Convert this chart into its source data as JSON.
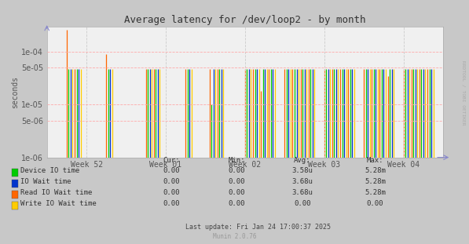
{
  "title": "Average latency for /dev/loop2 - by month",
  "ylabel": "seconds",
  "background_color": "#c8c8c8",
  "plot_bg_color": "#f0f0f0",
  "grid_color_h": "#ff9999",
  "grid_color_v": "#c8c8c8",
  "ylim_min": 1e-06,
  "ylim_max": 0.0003,
  "xlim_min": 0,
  "xlim_max": 10,
  "x_tick_positions": [
    1.0,
    3.0,
    5.0,
    7.0,
    9.0
  ],
  "x_labels": [
    "Week 52",
    "Week 01",
    "Week 02",
    "Week 03",
    "Week 04"
  ],
  "series": [
    {
      "name": "Device IO time",
      "color": "#00cc00",
      "segments": [
        [
          0.55,
          4.8e-05
        ],
        [
          0.75,
          4.8e-05
        ],
        [
          1.55,
          4.8e-05
        ],
        [
          2.55,
          4.8e-05
        ],
        [
          2.75,
          4.8e-05
        ],
        [
          3.55,
          4.8e-05
        ],
        [
          4.15,
          1e-05
        ],
        [
          4.35,
          4.8e-05
        ],
        [
          5.05,
          4.8e-05
        ],
        [
          5.25,
          4.8e-05
        ],
        [
          5.45,
          4.8e-05
        ],
        [
          5.65,
          4.8e-05
        ],
        [
          6.05,
          4.8e-05
        ],
        [
          6.25,
          4.8e-05
        ],
        [
          6.45,
          4.8e-05
        ],
        [
          6.65,
          4.8e-05
        ],
        [
          7.05,
          4.8e-05
        ],
        [
          7.25,
          4.8e-05
        ],
        [
          7.45,
          4.8e-05
        ],
        [
          7.65,
          4.8e-05
        ],
        [
          8.05,
          4.8e-05
        ],
        [
          8.25,
          4.8e-05
        ],
        [
          8.45,
          4.8e-05
        ],
        [
          8.65,
          4.8e-05
        ],
        [
          9.05,
          4.8e-05
        ],
        [
          9.25,
          4.8e-05
        ],
        [
          9.45,
          4.8e-05
        ],
        [
          9.65,
          4.8e-05
        ]
      ]
    },
    {
      "name": "IO Wait time",
      "color": "#0033cc",
      "segments": [
        [
          0.6,
          4.8e-05
        ],
        [
          0.8,
          4.8e-05
        ],
        [
          1.6,
          4.8e-05
        ],
        [
          2.6,
          4.8e-05
        ],
        [
          2.8,
          4.8e-05
        ],
        [
          3.6,
          4.8e-05
        ],
        [
          4.2,
          4.8e-05
        ],
        [
          4.4,
          4.8e-05
        ],
        [
          5.1,
          4.8e-05
        ],
        [
          5.3,
          4.8e-05
        ],
        [
          5.5,
          4.8e-05
        ],
        [
          5.7,
          4.8e-05
        ],
        [
          6.1,
          4.8e-05
        ],
        [
          6.3,
          4.8e-05
        ],
        [
          6.5,
          4.8e-05
        ],
        [
          6.7,
          4.8e-05
        ],
        [
          7.1,
          4.8e-05
        ],
        [
          7.3,
          4.8e-05
        ],
        [
          7.5,
          4.8e-05
        ],
        [
          7.7,
          4.8e-05
        ],
        [
          8.1,
          4.8e-05
        ],
        [
          8.3,
          4.8e-05
        ],
        [
          8.5,
          4.8e-05
        ],
        [
          8.7,
          4.8e-05
        ],
        [
          9.1,
          4.8e-05
        ],
        [
          9.3,
          4.8e-05
        ],
        [
          9.5,
          4.8e-05
        ],
        [
          9.7,
          4.8e-05
        ]
      ]
    },
    {
      "name": "Read IO Wait time",
      "color": "#ff6600",
      "segments": [
        [
          0.5,
          0.00026
        ],
        [
          0.7,
          4.8e-05
        ],
        [
          1.5,
          9e-05
        ],
        [
          2.5,
          4.8e-05
        ],
        [
          2.7,
          4.8e-05
        ],
        [
          3.5,
          4.8e-05
        ],
        [
          4.1,
          4.8e-05
        ],
        [
          4.3,
          4.8e-05
        ],
        [
          5.0,
          4.8e-05
        ],
        [
          5.2,
          4.8e-05
        ],
        [
          5.4,
          1.8e-05
        ],
        [
          5.6,
          4.8e-05
        ],
        [
          6.0,
          4.8e-05
        ],
        [
          6.2,
          4.8e-05
        ],
        [
          6.4,
          4.8e-05
        ],
        [
          6.6,
          4.8e-05
        ],
        [
          7.0,
          4.8e-05
        ],
        [
          7.2,
          4.8e-05
        ],
        [
          7.4,
          4.8e-05
        ],
        [
          7.6,
          4.8e-05
        ],
        [
          8.0,
          4.8e-05
        ],
        [
          8.2,
          4.8e-05
        ],
        [
          8.4,
          4.8e-05
        ],
        [
          8.6,
          3.5e-05
        ],
        [
          9.0,
          4.8e-05
        ],
        [
          9.2,
          4.8e-05
        ],
        [
          9.4,
          4.8e-05
        ],
        [
          9.6,
          4.8e-05
        ]
      ]
    },
    {
      "name": "Write IO Wait time",
      "color": "#ffcc00",
      "segments": [
        [
          0.65,
          4.8e-05
        ],
        [
          0.85,
          4.8e-05
        ],
        [
          1.65,
          4.8e-05
        ],
        [
          2.65,
          4.8e-05
        ],
        [
          2.85,
          4.8e-05
        ],
        [
          3.65,
          4.8e-05
        ],
        [
          4.25,
          4.8e-05
        ],
        [
          4.45,
          4.8e-05
        ],
        [
          5.15,
          4.8e-05
        ],
        [
          5.35,
          4.8e-05
        ],
        [
          5.55,
          4.8e-05
        ],
        [
          5.75,
          4.8e-05
        ],
        [
          6.15,
          4.8e-05
        ],
        [
          6.35,
          4.8e-05
        ],
        [
          6.55,
          4.8e-05
        ],
        [
          6.75,
          4.8e-05
        ],
        [
          7.15,
          4.8e-05
        ],
        [
          7.35,
          4.8e-05
        ],
        [
          7.55,
          4.8e-05
        ],
        [
          7.75,
          4.8e-05
        ],
        [
          8.15,
          4.8e-05
        ],
        [
          8.35,
          4.8e-05
        ],
        [
          8.55,
          4.8e-05
        ],
        [
          8.75,
          4.8e-05
        ],
        [
          9.15,
          4.8e-05
        ],
        [
          9.35,
          4.8e-05
        ],
        [
          9.55,
          4.8e-05
        ],
        [
          9.75,
          4.8e-05
        ]
      ]
    }
  ],
  "legend_items": [
    {
      "label": "Device IO time",
      "color": "#00cc00"
    },
    {
      "label": "IO Wait time",
      "color": "#0033cc"
    },
    {
      "label": "Read IO Wait time",
      "color": "#ff6600"
    },
    {
      "label": "Write IO Wait time",
      "color": "#ffcc00"
    }
  ],
  "legend_stats": [
    {
      "cur": "0.00",
      "min": "0.00",
      "avg": "3.58u",
      "max": "5.28m"
    },
    {
      "cur": "0.00",
      "min": "0.00",
      "avg": "3.68u",
      "max": "5.28m"
    },
    {
      "cur": "0.00",
      "min": "0.00",
      "avg": "3.68u",
      "max": "5.28m"
    },
    {
      "cur": "0.00",
      "min": "0.00",
      "avg": "0.00",
      "max": "0.00"
    }
  ],
  "col_headers": [
    "Cur:",
    "Min:",
    "Avg:",
    "Max:"
  ],
  "footer": "Last update: Fri Jan 24 17:00:37 2025",
  "munin_text": "Munin 2.0.76",
  "rrdtool_text": "RRDTOOL / TOBI OETIKER",
  "title_fontsize": 9,
  "tick_fontsize": 7,
  "label_fontsize": 7,
  "legend_fontsize": 6.5
}
